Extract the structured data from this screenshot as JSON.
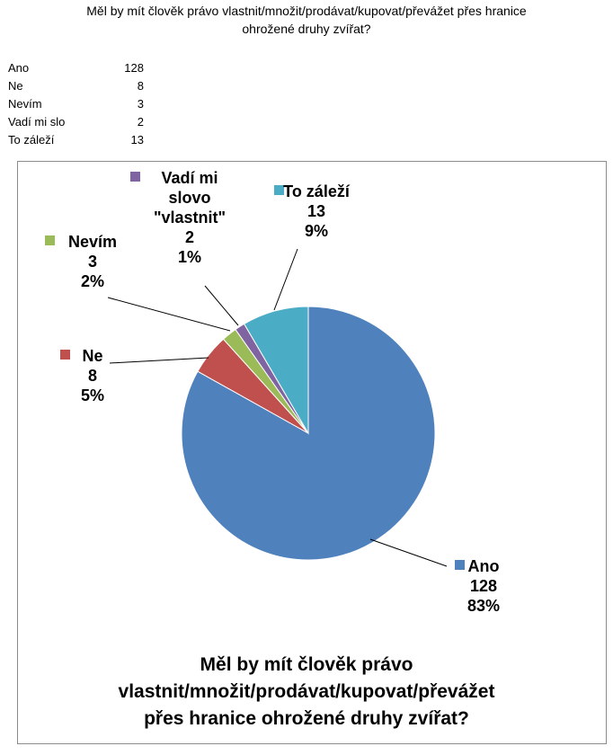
{
  "sheet_title": {
    "line1": "Měl by mít člověk právo vlastnit/množit/prodávat/kupovat/převážet přes hranice",
    "line2": "ohrožené druhy zvířat?"
  },
  "table": [
    {
      "label": "Ano",
      "value": "128"
    },
    {
      "label": "Ne",
      "value": "8"
    },
    {
      "label": "Nevím",
      "value": "3"
    },
    {
      "label": "Vadí mi slo",
      "value": "2"
    },
    {
      "label": "To záleží",
      "value": "13"
    }
  ],
  "chart_data": {
    "type": "pie",
    "title": "Měl by mít člověk právo vlastnit/množit/prodávat/kupovat/převážet přes hranice ohrožené druhy zvířat?",
    "title_lines": [
      "Měl by mít člověk právo",
      "vlastnit/množit/prodávat/kupovat/převážet",
      "přes hranice ohrožené druhy zvířat?"
    ],
    "slices": [
      {
        "name_lines": [
          "Ano"
        ],
        "value": 128,
        "value_label": "128",
        "percent_label": "83%",
        "color": "#4f81bd"
      },
      {
        "name_lines": [
          "Ne"
        ],
        "value": 8,
        "value_label": "8",
        "percent_label": "5%",
        "color": "#c0504d"
      },
      {
        "name_lines": [
          "Nevím"
        ],
        "value": 3,
        "value_label": "3",
        "percent_label": "2%",
        "color": "#9bbb59"
      },
      {
        "name_lines": [
          "Vadí mi",
          "slovo",
          "\"vlastnit\""
        ],
        "value": 2,
        "value_label": "2",
        "percent_label": "1%",
        "color": "#8064a2"
      },
      {
        "name_lines": [
          "To záleží"
        ],
        "value": 13,
        "value_label": "13",
        "percent_label": "9%",
        "color": "#4bacc6"
      }
    ],
    "start_angle": "top",
    "direction": "clockwise",
    "legend": "none"
  }
}
